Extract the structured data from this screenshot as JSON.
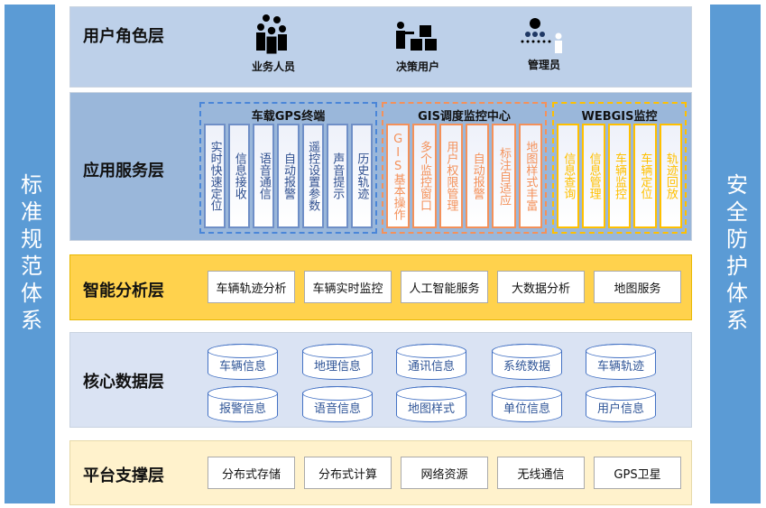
{
  "left_bar": "标准规范体系",
  "right_bar": "安全防护体系",
  "layers": {
    "user": {
      "title": "用户角色层",
      "roles": [
        {
          "label": "业务人员",
          "icon": "group-people-icon"
        },
        {
          "label": "决策用户",
          "icon": "presenter-boxes-icon"
        },
        {
          "label": "管理员",
          "icon": "org-admin-icon"
        }
      ]
    },
    "app": {
      "title": "应用服务层",
      "groups": [
        {
          "title": "车载GPS终端",
          "color": "#4a86d8",
          "items": [
            "实时快速定位",
            "信息接收",
            "语音通信",
            "自动报警",
            "遥控设置参数",
            "声音提示",
            "历史轨迹"
          ]
        },
        {
          "title": "GIS调度监控中心",
          "color": "#f4915a",
          "items": [
            "GIS基本操作",
            "多个监控窗口",
            "用户权限管理",
            "自动报警",
            "标注自适应",
            "地图样式丰富"
          ]
        },
        {
          "title": "WEBGIS监控",
          "color": "#ffc000",
          "items": [
            "信息查询",
            "信息管理",
            "车辆监控",
            "车辆定位",
            "轨迹回放"
          ]
        }
      ]
    },
    "analysis": {
      "title": "智能分析层",
      "items": [
        "车辆轨迹分析",
        "车辆实时监控",
        "人工智能服务",
        "大数据分析",
        "地图服务"
      ]
    },
    "data": {
      "title": "核心数据层",
      "items": [
        "车辆信息",
        "地理信息",
        "通讯信息",
        "系统数据",
        "车辆轨迹",
        "报警信息",
        "语音信息",
        "地图样式",
        "单位信息",
        "用户信息"
      ]
    },
    "platform": {
      "title": "平台支撑层",
      "items": [
        "分布式存储",
        "分布式计算",
        "网络资源",
        "无线通信",
        "GPS卫星"
      ]
    }
  }
}
